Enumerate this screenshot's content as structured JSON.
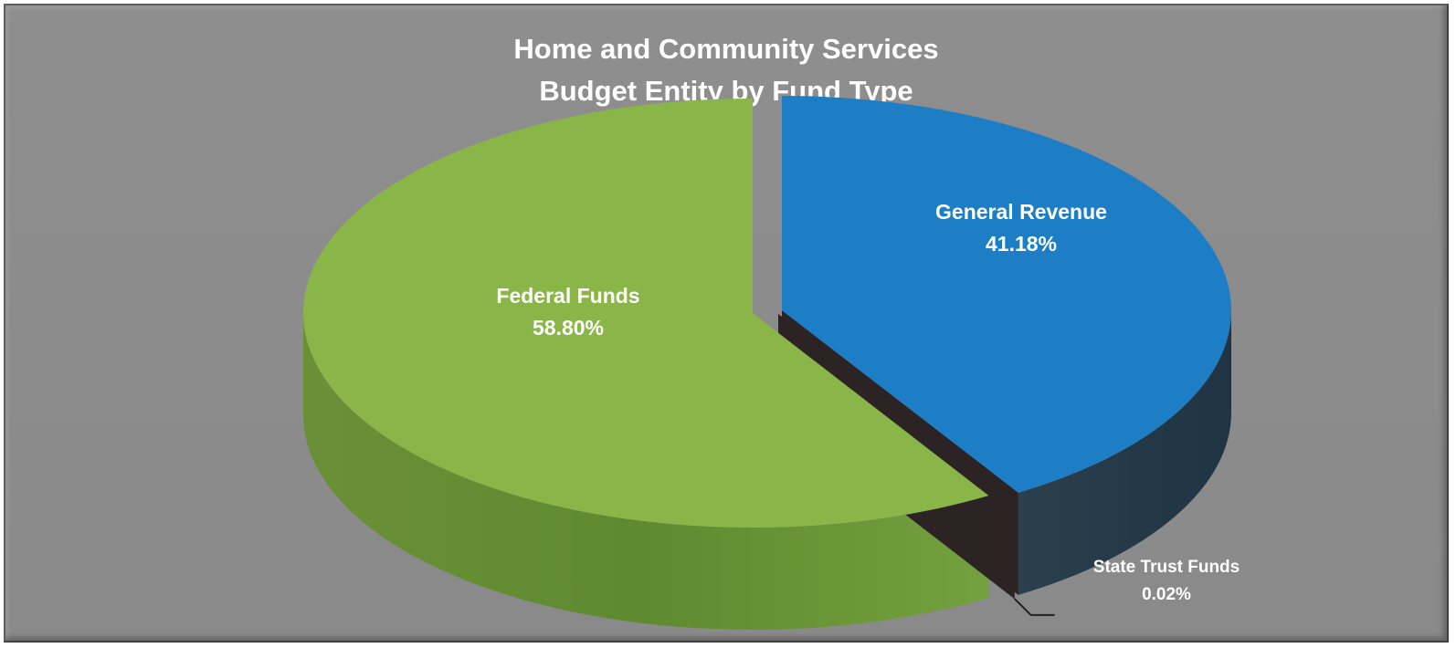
{
  "chart_data": {
    "type": "pie",
    "title": "Home and Community Services",
    "subtitle": "Budget Entity by Fund Type",
    "slices": [
      {
        "label": "General Revenue",
        "value": 41.18,
        "value_label": "41.18%",
        "color": "#1d7ec5",
        "side_color": "#20384a"
      },
      {
        "label": "State Trust Funds",
        "value": 0.02,
        "value_label": "0.02%",
        "color": "#2a2222",
        "side_color": "#2a2222"
      },
      {
        "label": "Federal Funds",
        "value": 58.8,
        "value_label": "58.80%",
        "color": "#8ab549",
        "side_color": "#5f8530"
      }
    ],
    "style": "3d-exploded",
    "background": "#8c8c8c",
    "text_color": "#ffffff"
  }
}
